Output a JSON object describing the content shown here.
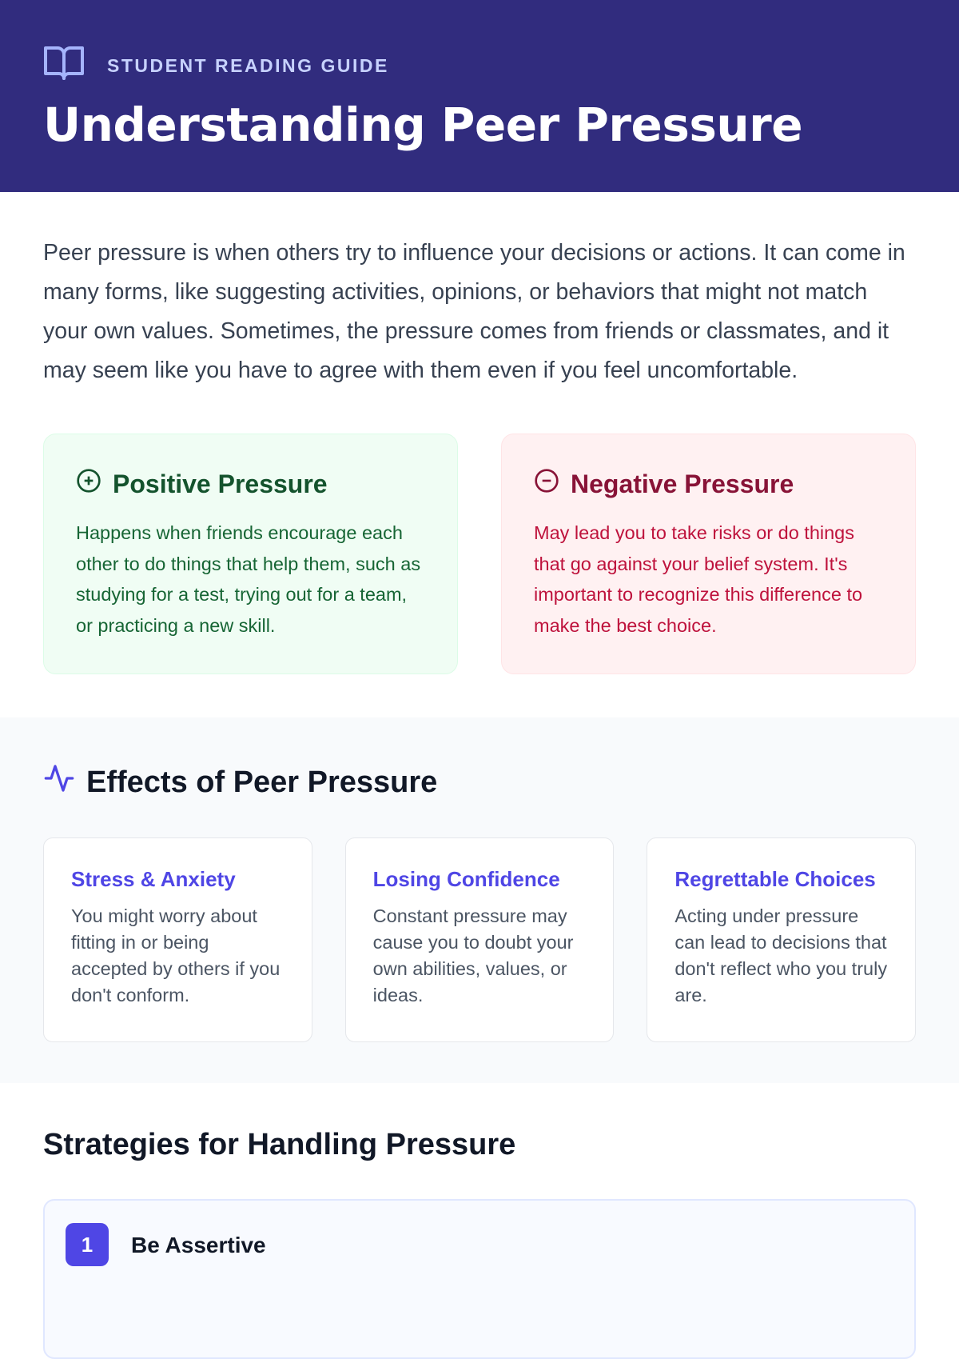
{
  "header": {
    "eyebrow": "STUDENT READING GUIDE",
    "title": "Understanding Peer Pressure",
    "icon": "book-open-icon"
  },
  "intro": "Peer pressure is when others try to influence your decisions or actions. It can come in many forms, like suggesting activities, opinions, or behaviors that might not match your own values. Sometimes, the pressure comes from friends or classmates, and it may seem like you have to agree with them even if you feel uncomfortable.",
  "positive": {
    "title": "Positive Pressure",
    "text": "Happens when friends encourage each other to do things that help them, such as studying for a test, trying out for a team, or practicing a new skill.",
    "icon": "plus-circle-icon"
  },
  "negative": {
    "title": "Negative Pressure",
    "text": "May lead you to take risks or do things that go against your belief system. It's important to recognize this difference to make the best choice.",
    "icon": "minus-circle-icon"
  },
  "effects": {
    "title": "Effects of Peer Pressure",
    "icon": "activity-icon",
    "items": [
      {
        "title": "Stress & Anxiety",
        "text": "You might worry about fitting in or being accepted by others if you don't conform."
      },
      {
        "title": "Losing Confidence",
        "text": "Constant pressure may cause you to doubt your own abilities, values, or ideas."
      },
      {
        "title": "Regrettable Choices",
        "text": "Acting under pressure can lead to decisions that don't reflect who you truly are."
      }
    ]
  },
  "strategies": {
    "title": "Strategies for Handling Pressure",
    "items": [
      {
        "number": "1",
        "title": "Be Assertive"
      }
    ]
  }
}
